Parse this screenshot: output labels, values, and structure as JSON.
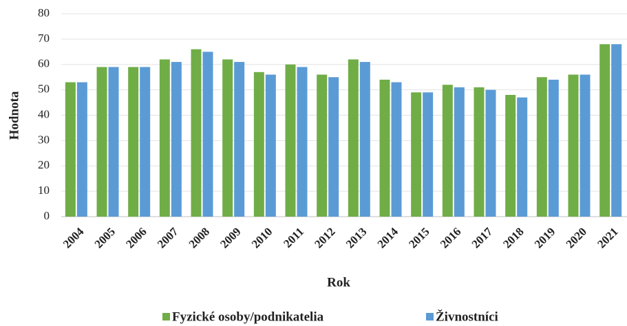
{
  "chart_data": {
    "type": "bar",
    "x_label": "Rok",
    "y_label": "Hodnota",
    "categories": [
      "2004",
      "2005",
      "2006",
      "2007",
      "2008",
      "2009",
      "2010",
      "2011",
      "2012",
      "2013",
      "2014",
      "2015",
      "2016",
      "2017",
      "2018",
      "2019",
      "2020",
      "2021"
    ],
    "series": [
      {
        "name": "Fyzické osoby/podnikatelia",
        "color": "#70ad47",
        "values": [
          53,
          59,
          59,
          62,
          66,
          62,
          57,
          60,
          56,
          62,
          54,
          49,
          52,
          51,
          48,
          55,
          56,
          68
        ]
      },
      {
        "name": "Živnostníci",
        "color": "#5b9bd5",
        "values": [
          53,
          59,
          59,
          61,
          65,
          61,
          56,
          59,
          55,
          61,
          53,
          49,
          51,
          50,
          47,
          54,
          56,
          68
        ]
      }
    ],
    "ylim": [
      0,
      80
    ],
    "yticks": [
      0,
      10,
      20,
      30,
      40,
      50,
      60,
      70,
      80
    ],
    "grid": true,
    "legend": "bottom"
  }
}
